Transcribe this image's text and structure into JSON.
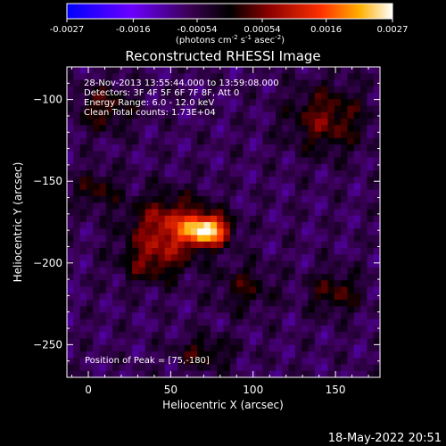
{
  "chart_data": {
    "type": "heatmap",
    "title": "Reconstructed RHESSI Image",
    "xlabel": "Heliocentric X (arcsec)",
    "ylabel": "Heliocentric Y (arcsec)",
    "xlim": [
      -13,
      177
    ],
    "ylim": [
      -270,
      -80
    ],
    "xticks": [
      0,
      50,
      100,
      150
    ],
    "yticks": [
      -100,
      -150,
      -200,
      -250
    ],
    "colorbar": {
      "range": [
        -0.0027,
        0.0027
      ],
      "ticks": [
        "-0.0027",
        "-0.0016",
        "-0.00054",
        "0.00054",
        "0.0016",
        "0.0027"
      ],
      "unit_label": {
        "prefix": "(photons cm",
        "exp1": "-2",
        "mid1": " s",
        "exp2": "-1",
        "mid2": " asec",
        "exp3": "-2",
        "suffix": ")"
      }
    },
    "info_lines": [
      "28-Nov-2013 13:55:44.000 to 13:59:08.000",
      "Detectors: 3F 4F 5F 6F 7F 8F, Att 0",
      "Energy Range: 6.0 - 12.0 keV",
      "Clean    Total counts: 1.73E+04"
    ],
    "peak_label": "Position of Peak = [75,-180]",
    "peak": [
      75,
      -180
    ],
    "sources": [
      {
        "x": 72,
        "y": -180,
        "sx": 9,
        "sy": 6,
        "amp": 0.0029
      },
      {
        "x": 50,
        "y": -178,
        "sx": 17,
        "sy": 13,
        "amp": 0.0016
      },
      {
        "x": 38,
        "y": -200,
        "sx": 13,
        "sy": 9,
        "amp": 0.0009
      },
      {
        "x": 145,
        "y": -112,
        "sx": 16,
        "sy": 14,
        "amp": 0.0011
      },
      {
        "x": 10,
        "y": -105,
        "sx": 12,
        "sy": 10,
        "amp": 0.0009
      },
      {
        "x": 150,
        "y": -218,
        "sx": 11,
        "sy": 9,
        "amp": 0.0009
      },
      {
        "x": 5,
        "y": -155,
        "sx": 9,
        "sy": 8,
        "amp": 0.0008
      },
      {
        "x": 95,
        "y": -215,
        "sx": 12,
        "sy": 10,
        "amp": 0.0007
      },
      {
        "x": 70,
        "y": -255,
        "sx": 12,
        "sy": 7,
        "amp": 0.0008
      }
    ],
    "grid": false
  },
  "footer": {
    "timestamp": "18-May-2022 20:51"
  }
}
